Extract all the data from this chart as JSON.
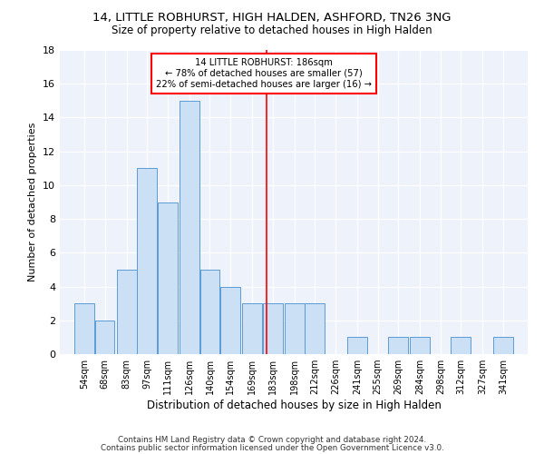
{
  "title": "14, LITTLE ROBHURST, HIGH HALDEN, ASHFORD, TN26 3NG",
  "subtitle": "Size of property relative to detached houses in High Halden",
  "xlabel": "Distribution of detached houses by size in High Halden",
  "ylabel": "Number of detached properties",
  "bar_color": "#cce0f5",
  "bar_edge_color": "#5b9bd5",
  "categories": [
    "54sqm",
    "68sqm",
    "83sqm",
    "97sqm",
    "111sqm",
    "126sqm",
    "140sqm",
    "154sqm",
    "169sqm",
    "183sqm",
    "198sqm",
    "212sqm",
    "226sqm",
    "241sqm",
    "255sqm",
    "269sqm",
    "284sqm",
    "298sqm",
    "312sqm",
    "327sqm",
    "341sqm"
  ],
  "values": [
    3,
    2,
    5,
    11,
    9,
    15,
    5,
    4,
    3,
    3,
    3,
    3,
    0,
    1,
    0,
    1,
    1,
    0,
    1,
    0,
    1
  ],
  "bin_width": 14,
  "bin_starts": [
    54,
    68,
    83,
    97,
    111,
    126,
    140,
    154,
    169,
    183,
    198,
    212,
    226,
    241,
    255,
    269,
    284,
    298,
    312,
    327,
    341
  ],
  "subject_size": 186,
  "annotation_line1": "14 LITTLE ROBHURST: 186sqm",
  "annotation_line2": "← 78% of detached houses are smaller (57)",
  "annotation_line3": "22% of semi-detached houses are larger (16) →",
  "vline_color": "red",
  "ylim": [
    0,
    18
  ],
  "yticks": [
    0,
    2,
    4,
    6,
    8,
    10,
    12,
    14,
    16,
    18
  ],
  "bg_color": "#eef2fb",
  "footer1": "Contains HM Land Registry data © Crown copyright and database right 2024.",
  "footer2": "Contains public sector information licensed under the Open Government Licence v3.0."
}
